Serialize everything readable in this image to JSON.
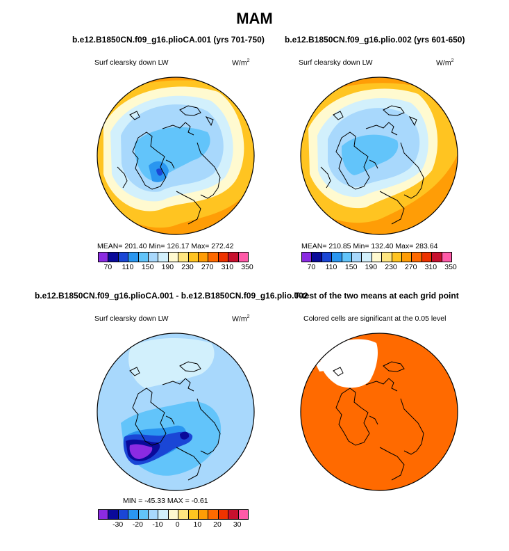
{
  "title": "MAM",
  "panels": [
    {
      "case_title": "b.e12.B1850CN.f09_g16.plioCA.001 (yrs 701-750)",
      "variable": "Surf clearsky down LW",
      "units": "W/m",
      "units_sup": "2",
      "stats": "MEAN= 201.40  Min= 126.17  Max= 272.42"
    },
    {
      "case_title": "b.e12.B1850CN.f09_g16.plio.002 (yrs 601-650)",
      "variable": "Surf clearsky down LW",
      "units": "W/m",
      "units_sup": "2",
      "stats": "MEAN= 210.85  Min= 132.40  Max= 283.64"
    },
    {
      "case_title": "b.e12.B1850CN.f09_g16.plioCA.001 - b.e12.B1850CN.f09_g16.plio.002",
      "variable": "Surf clearsky down LW",
      "units": "W/m",
      "units_sup": "2",
      "stats": "MIN = -45.33  MAX =  -0.61"
    },
    {
      "case_title": "T-test of the two means at each grid point",
      "variable": "Colored cells are significant at the 0.05 level"
    }
  ],
  "colorbar_abs": {
    "colors": [
      "#8b2be2",
      "#0a0a9a",
      "#1a46d6",
      "#2a96f0",
      "#62c4fa",
      "#a8d8fc",
      "#d2f0fc",
      "#fffad0",
      "#ffe680",
      "#ffc421",
      "#ff9d06",
      "#ff6a00",
      "#ee3300",
      "#c8102e",
      "#ff5aa8"
    ],
    "labels": [
      "70",
      "110",
      "150",
      "190",
      "230",
      "270",
      "310",
      "350"
    ]
  },
  "colorbar_diff": {
    "colors": [
      "#8b2be2",
      "#0a0a9a",
      "#1a46d6",
      "#2a96f0",
      "#62c4fa",
      "#a8d8fc",
      "#d2f0fc",
      "#fffad0",
      "#ffe680",
      "#ffc421",
      "#ff9d06",
      "#ff6a00",
      "#ee3300",
      "#c8102e",
      "#ff5aa8"
    ],
    "labels": [
      "-30",
      "-20",
      "-10",
      "0",
      "10",
      "20",
      "30"
    ]
  },
  "map_colors": {
    "orange": "#ff9d06",
    "yellow": "#ffc421",
    "lightyellow": "#fffad0",
    "paleblue": "#d2f0fc",
    "lightblue": "#a8d8fc",
    "blue": "#62c4fa",
    "midblue": "#2a96f0",
    "darkblue": "#1a46d6",
    "navy": "#0a0a9a",
    "purple": "#8b2be2",
    "sig": "#ff6a00"
  }
}
